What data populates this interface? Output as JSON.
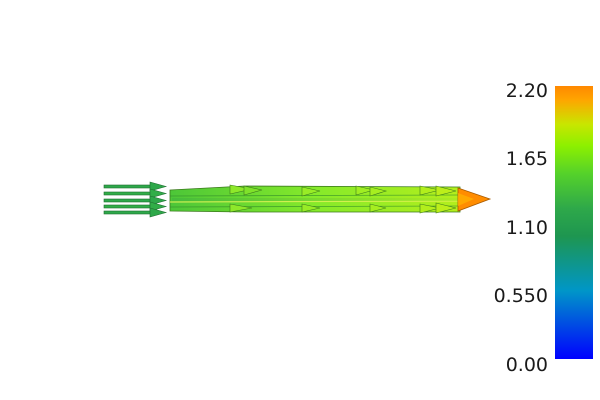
{
  "scalar_bar": {
    "tick_labels": [
      "2.20",
      "1.65",
      "1.10",
      "0.550",
      "0.00"
    ],
    "range": [
      0.0,
      2.2
    ],
    "colormap": [
      "#0000ff",
      "#0096c8",
      "#1e9650",
      "#2ea84a",
      "#55d22a",
      "#8cf000",
      "#c8e600",
      "#ffa500",
      "#ff8800"
    ]
  },
  "glyphs": {
    "inlet_arrow_color": "#2ea84a",
    "stream_color": "#7ee82c",
    "tip_color": "#ff8c00"
  }
}
